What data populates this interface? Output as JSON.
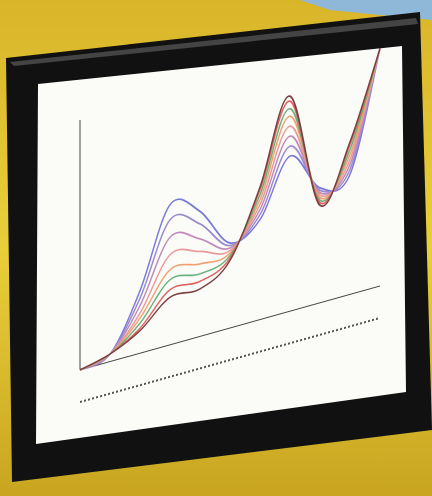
{
  "chart_data": {
    "type": "line",
    "x": [
      0,
      1,
      2,
      3,
      4,
      5,
      6,
      7,
      8,
      9,
      10
    ],
    "xlim": [
      0,
      10
    ],
    "ylim": [
      0,
      10
    ],
    "series": [
      {
        "color": "#7a7ad8",
        "values": [
          0,
          0.3,
          2.5,
          5.6,
          5.0,
          3.4,
          4.0,
          6.2,
          4.6,
          4.8,
          9.5
        ]
      },
      {
        "color": "#9a8ad0",
        "values": [
          0,
          0.3,
          2.2,
          5.0,
          4.5,
          3.3,
          4.2,
          6.6,
          4.5,
          5.0,
          9.5
        ]
      },
      {
        "color": "#c08ab8",
        "values": [
          0,
          0.3,
          1.9,
          4.3,
          3.9,
          3.2,
          4.4,
          7.0,
          4.4,
          5.2,
          9.5
        ]
      },
      {
        "color": "#e89a9a",
        "values": [
          0,
          0.3,
          1.6,
          3.6,
          3.4,
          3.1,
          4.6,
          7.4,
          4.3,
          5.4,
          9.5
        ]
      },
      {
        "color": "#f0a070",
        "values": [
          0,
          0.3,
          1.4,
          3.0,
          2.9,
          3.0,
          4.8,
          7.8,
          4.2,
          5.6,
          9.5
        ]
      },
      {
        "color": "#6ab07a",
        "values": [
          0,
          0.3,
          1.2,
          2.6,
          2.5,
          2.9,
          5.0,
          8.1,
          4.1,
          5.8,
          9.5
        ]
      },
      {
        "color": "#e06060",
        "values": [
          0,
          0.3,
          1.0,
          2.2,
          2.2,
          2.8,
          5.2,
          8.4,
          4.0,
          6.0,
          9.5
        ]
      },
      {
        "color": "#7a4040",
        "values": [
          0,
          0.3,
          0.9,
          1.9,
          1.9,
          2.7,
          5.3,
          8.6,
          3.9,
          6.1,
          9.5
        ]
      }
    ]
  }
}
